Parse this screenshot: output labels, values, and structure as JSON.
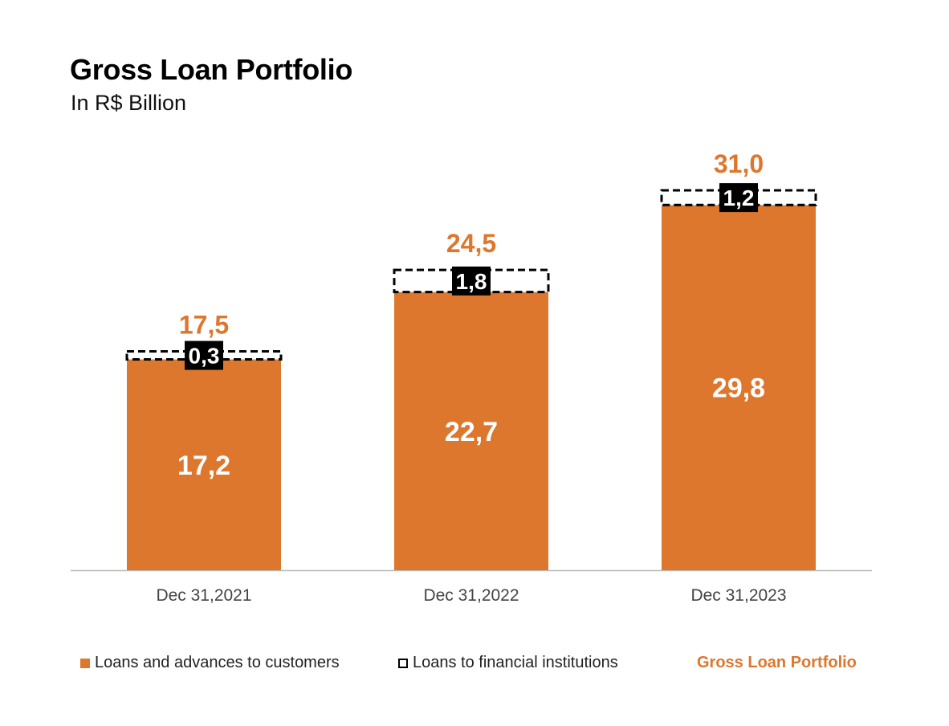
{
  "chart_data": {
    "type": "bar",
    "stacked": true,
    "title": "Gross Loan Portfolio",
    "subtitle": "In R$ Billion",
    "categories": [
      "Dec 31,2021",
      "Dec 31,2022",
      "Dec 31,2023"
    ],
    "series": [
      {
        "name": "Loans and advances to customers",
        "values": [
          17.2,
          22.7,
          29.8
        ],
        "labels": [
          "17,2",
          "22,7",
          "29,8"
        ]
      },
      {
        "name": "Loans to financial institutions",
        "values": [
          0.3,
          1.8,
          1.2
        ],
        "labels": [
          "0,3",
          "1,8",
          "1,2"
        ]
      }
    ],
    "totals": {
      "name": "Gross Loan Portfolio",
      "values": [
        17.5,
        24.5,
        31.0
      ],
      "labels": [
        "17,5",
        "24,5",
        "31,0"
      ]
    },
    "ylim": [
      0,
      36
    ],
    "grid": false,
    "legend_position": "bottom",
    "colors": {
      "customers": "#dd772e",
      "financial": "#ffffff",
      "financial_border": "#000000",
      "total_label": "#dd772e",
      "axis": "#bbbbbb"
    }
  }
}
